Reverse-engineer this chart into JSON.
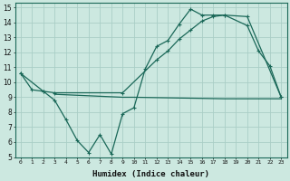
{
  "xlabel": "Humidex (Indice chaleur)",
  "bg_color": "#cce8e0",
  "grid_color": "#aacec6",
  "line_color": "#1a6858",
  "xlim": [
    -0.5,
    23.5
  ],
  "ylim": [
    5,
    15.3
  ],
  "xticks": [
    0,
    1,
    2,
    3,
    4,
    5,
    6,
    7,
    8,
    9,
    10,
    11,
    12,
    13,
    14,
    15,
    16,
    17,
    18,
    19,
    20,
    21,
    22,
    23
  ],
  "yticks": [
    5,
    6,
    7,
    8,
    9,
    10,
    11,
    12,
    13,
    14,
    15
  ],
  "line1_x": [
    0,
    1,
    2,
    3,
    4,
    5,
    6,
    7,
    8,
    9,
    10,
    11,
    12,
    13,
    14,
    15,
    16,
    17,
    18,
    20,
    21,
    22,
    23
  ],
  "line1_y": [
    10.6,
    9.5,
    9.4,
    8.8,
    7.5,
    6.1,
    5.3,
    6.5,
    5.2,
    7.9,
    8.3,
    10.9,
    12.4,
    12.8,
    13.9,
    14.9,
    14.5,
    14.5,
    14.5,
    13.8,
    12.1,
    11.1,
    9.0
  ],
  "line2_x": [
    0,
    2,
    3,
    9,
    12,
    13,
    14,
    15,
    16,
    17,
    18,
    20,
    23
  ],
  "line2_y": [
    10.6,
    9.4,
    9.3,
    9.3,
    11.5,
    12.1,
    12.9,
    13.5,
    14.1,
    14.4,
    14.5,
    14.4,
    9.0
  ],
  "line3_x": [
    3,
    9,
    10,
    18,
    23
  ],
  "line3_y": [
    9.2,
    9.0,
    9.0,
    8.9,
    8.9
  ]
}
